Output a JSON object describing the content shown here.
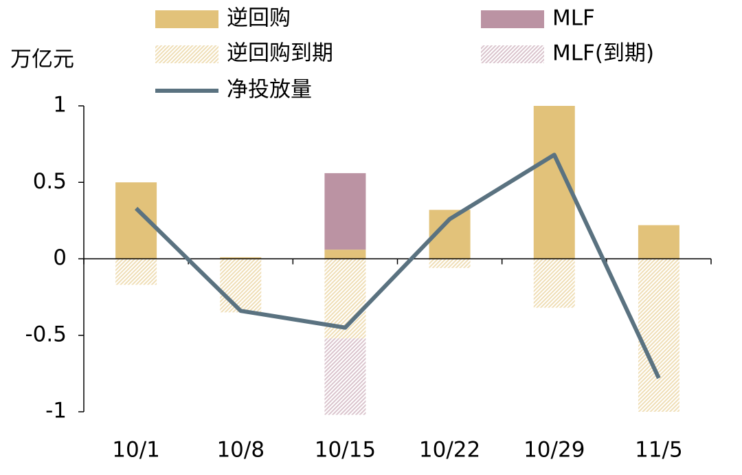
{
  "chart_data": {
    "type": "bar",
    "y_label": "万亿元",
    "categories": [
      "10/1",
      "10/8",
      "10/15",
      "10/22",
      "10/29",
      "11/5"
    ],
    "series": [
      {
        "name": "逆回购",
        "color": "#e2c27a",
        "values": [
          0.5,
          0.01,
          0.06,
          0.32,
          1.0,
          0.22
        ]
      },
      {
        "name": "MLF",
        "color": "#bb93a3",
        "values": [
          0,
          0,
          0.5,
          0,
          0,
          0
        ]
      },
      {
        "name": "逆回购到期",
        "color": "#e2c27a",
        "pattern": "hatch",
        "values": [
          -0.17,
          -0.35,
          -0.52,
          -0.06,
          -0.32,
          -1.0
        ]
      },
      {
        "name": "MLF(到期)",
        "color": "#bb93a3",
        "pattern": "hatch",
        "values": [
          0,
          0,
          -0.5,
          0,
          0,
          0
        ]
      },
      {
        "name": "净投放量",
        "type": "line",
        "color": "#5a7280",
        "values": [
          0.33,
          -0.34,
          -0.45,
          0.26,
          0.68,
          -0.78
        ]
      }
    ],
    "ylim": [
      -1,
      1
    ],
    "yticks": [
      -1,
      -0.5,
      0,
      0.5,
      1
    ]
  }
}
